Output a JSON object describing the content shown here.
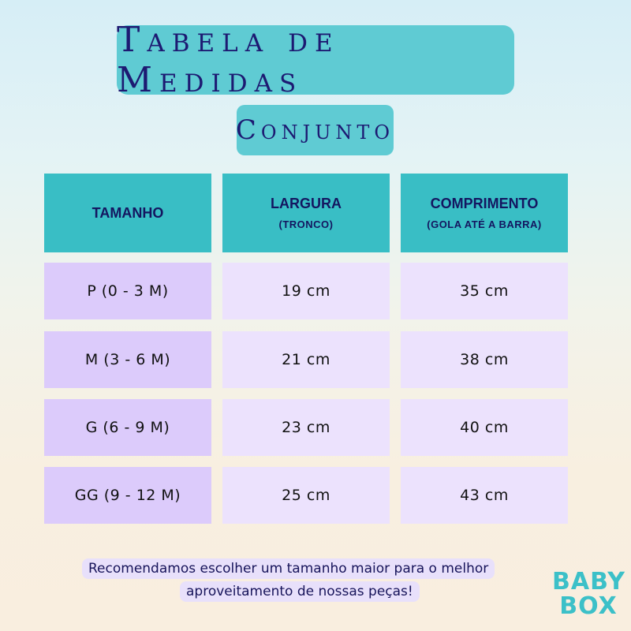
{
  "title": "Tabela de Medidas",
  "subtitle": "Conjunto",
  "table": {
    "headers": [
      {
        "main": "TAMANHO",
        "sub": ""
      },
      {
        "main": "LARGURA",
        "sub": "(TRONCO)"
      },
      {
        "main": "COMPRIMENTO",
        "sub": "(GOLA ATÉ A BARRA)"
      }
    ],
    "rows": [
      [
        "P  (0 - 3 M)",
        "19 cm",
        "35 cm"
      ],
      [
        "M  (3 - 6 M)",
        "21 cm",
        "38 cm"
      ],
      [
        "G  (6 - 9 M)",
        "23 cm",
        "40 cm"
      ],
      [
        "GG  (9 - 12 M)",
        "25 cm",
        "43 cm"
      ]
    ]
  },
  "note": {
    "line1": "Recomendamos escolher um tamanho maior para o melhor",
    "line2": "aproveitamento de nossas peças!"
  },
  "logo": {
    "line1": "BABY",
    "line2": "BOX"
  },
  "colors": {
    "accent": "#5fcbd3",
    "header": "#39bec5",
    "size_cell": "#dccbfb",
    "value_cell": "#ece2fd",
    "text": "#1d1a72"
  }
}
